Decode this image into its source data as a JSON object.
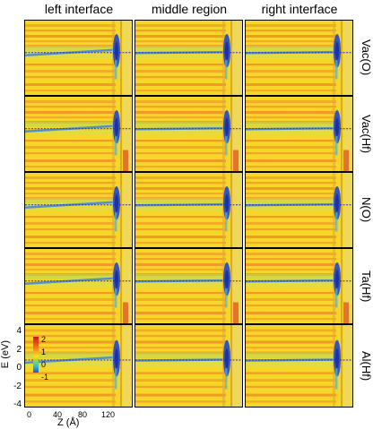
{
  "figure": {
    "column_titles": [
      "left interface",
      "middle region",
      "right interface"
    ],
    "row_titles": [
      "Vac(O)",
      "Vac(Hf)",
      "N(O)",
      "Ta(Hf)",
      "Al(Hf)"
    ],
    "y_axis": {
      "label": "E (eV)",
      "ticks": [
        "4",
        "2",
        "0",
        "-2",
        "-4"
      ]
    },
    "x_axis": {
      "label": "Z (Å)",
      "ticks": [
        "0",
        "40",
        "80",
        "120"
      ]
    },
    "colorbar": {
      "ticks": [
        "2",
        "1",
        "0",
        "-1"
      ]
    },
    "colors": {
      "background": "#f7d62a",
      "stripe": "#ef8a22",
      "band_edge": "#3a86e0",
      "fermi_line": "#1c2fd0",
      "interface_dark": "#1f48c9"
    }
  }
}
